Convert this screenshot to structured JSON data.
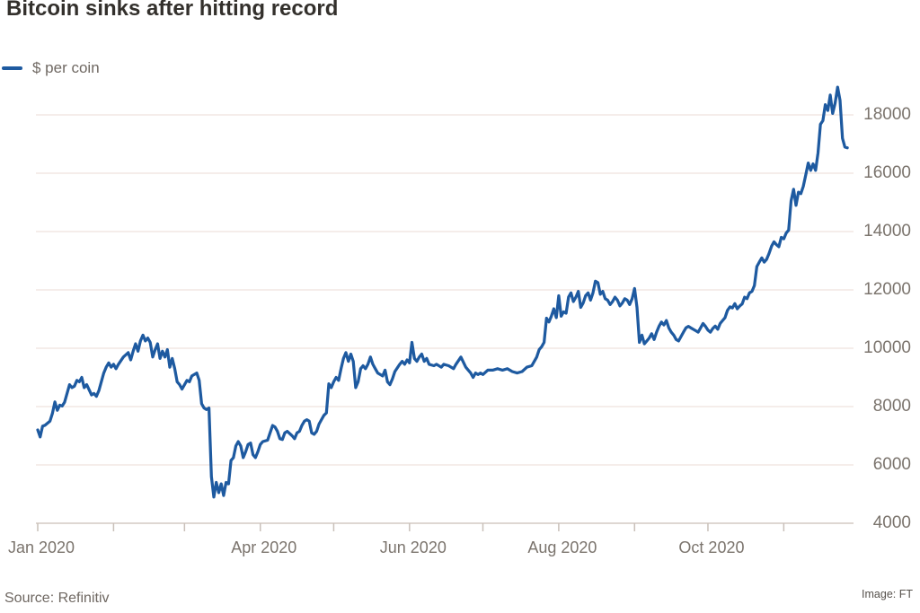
{
  "header": {
    "title": "Bitcoin sinks after hitting record"
  },
  "legend": {
    "label": "$ per coin",
    "line_color": "#1e5aa0"
  },
  "footer": {
    "source": "Source: Refinitiv",
    "credit": "Image: FT"
  },
  "colors": {
    "line": "#1e5aa0",
    "gridline": "#f2e7e3",
    "axis": "#d3cac4",
    "tick": "#c9c0b9",
    "axis_text": "#7b746d",
    "title_text": "#33302c"
  },
  "chart_data": {
    "type": "line",
    "title": "Bitcoin sinks after hitting record",
    "xlabel": "",
    "ylabel": "$ per coin",
    "ylim": [
      4000,
      19200
    ],
    "x_unit": "day of year 2020",
    "grid": "horizontal",
    "legend_position": "top-left",
    "y_ticks": [
      4000,
      6000,
      8000,
      10000,
      12000,
      14000,
      16000,
      18000
    ],
    "x_ticks": [
      {
        "day": 1,
        "label": "Jan 2020"
      },
      {
        "day": 32,
        "label": ""
      },
      {
        "day": 61,
        "label": ""
      },
      {
        "day": 92,
        "label": "Apr 2020"
      },
      {
        "day": 122,
        "label": ""
      },
      {
        "day": 153,
        "label": "Jun 2020"
      },
      {
        "day": 183,
        "label": ""
      },
      {
        "day": 214,
        "label": "Aug 2020"
      },
      {
        "day": 245,
        "label": ""
      },
      {
        "day": 275,
        "label": "Oct 2020"
      },
      {
        "day": 306,
        "label": ""
      }
    ],
    "series": [
      {
        "name": "$ per coin",
        "color": "#1e5aa0",
        "points": [
          [
            1,
            7200
          ],
          [
            2,
            6960
          ],
          [
            3,
            7330
          ],
          [
            4,
            7360
          ],
          [
            6,
            7500
          ],
          [
            7,
            7760
          ],
          [
            8,
            8160
          ],
          [
            9,
            7870
          ],
          [
            10,
            8050
          ],
          [
            11,
            8020
          ],
          [
            12,
            8150
          ],
          [
            14,
            8750
          ],
          [
            15,
            8650
          ],
          [
            16,
            8700
          ],
          [
            17,
            8900
          ],
          [
            18,
            8850
          ],
          [
            19,
            9000
          ],
          [
            20,
            8650
          ],
          [
            21,
            8750
          ],
          [
            23,
            8400
          ],
          [
            24,
            8450
          ],
          [
            25,
            8350
          ],
          [
            26,
            8550
          ],
          [
            28,
            9150
          ],
          [
            29,
            9350
          ],
          [
            30,
            9500
          ],
          [
            31,
            9350
          ],
          [
            32,
            9450
          ],
          [
            33,
            9300
          ],
          [
            34,
            9450
          ],
          [
            36,
            9700
          ],
          [
            38,
            9850
          ],
          [
            39,
            9600
          ],
          [
            40,
            9900
          ],
          [
            41,
            10150
          ],
          [
            42,
            9900
          ],
          [
            43,
            10250
          ],
          [
            44,
            10450
          ],
          [
            45,
            10250
          ],
          [
            46,
            10350
          ],
          [
            47,
            10200
          ],
          [
            48,
            9700
          ],
          [
            49,
            9950
          ],
          [
            50,
            10150
          ],
          [
            51,
            9650
          ],
          [
            52,
            9900
          ],
          [
            53,
            9700
          ],
          [
            54,
            9950
          ],
          [
            55,
            9350
          ],
          [
            56,
            9650
          ],
          [
            57,
            9300
          ],
          [
            58,
            8850
          ],
          [
            59,
            8750
          ],
          [
            60,
            8600
          ],
          [
            61,
            8750
          ],
          [
            62,
            8900
          ],
          [
            63,
            8850
          ],
          [
            64,
            9050
          ],
          [
            66,
            9150
          ],
          [
            67,
            8900
          ],
          [
            68,
            8100
          ],
          [
            69,
            7950
          ],
          [
            70,
            7900
          ],
          [
            71,
            7950
          ],
          [
            72,
            5600
          ],
          [
            73,
            4900
          ],
          [
            74,
            5400
          ],
          [
            75,
            5050
          ],
          [
            76,
            5350
          ],
          [
            77,
            4950
          ],
          [
            78,
            5400
          ],
          [
            79,
            5350
          ],
          [
            80,
            6150
          ],
          [
            81,
            6250
          ],
          [
            82,
            6650
          ],
          [
            83,
            6800
          ],
          [
            84,
            6650
          ],
          [
            85,
            6250
          ],
          [
            86,
            6450
          ],
          [
            87,
            6700
          ],
          [
            88,
            6750
          ],
          [
            89,
            6350
          ],
          [
            90,
            6250
          ],
          [
            91,
            6450
          ],
          [
            92,
            6700
          ],
          [
            93,
            6800
          ],
          [
            95,
            6850
          ],
          [
            96,
            7100
          ],
          [
            97,
            7350
          ],
          [
            98,
            7300
          ],
          [
            99,
            7150
          ],
          [
            100,
            6900
          ],
          [
            101,
            6870
          ],
          [
            102,
            7100
          ],
          [
            103,
            7150
          ],
          [
            105,
            7000
          ],
          [
            106,
            6900
          ],
          [
            107,
            7100
          ],
          [
            108,
            7150
          ],
          [
            109,
            7350
          ],
          [
            110,
            7500
          ],
          [
            111,
            7550
          ],
          [
            112,
            7500
          ],
          [
            113,
            7100
          ],
          [
            114,
            7050
          ],
          [
            115,
            7150
          ],
          [
            116,
            7400
          ],
          [
            117,
            7550
          ],
          [
            118,
            7700
          ],
          [
            119,
            7780
          ],
          [
            120,
            8780
          ],
          [
            121,
            8650
          ],
          [
            122,
            8850
          ],
          [
            123,
            9000
          ],
          [
            124,
            8900
          ],
          [
            125,
            9300
          ],
          [
            126,
            9650
          ],
          [
            127,
            9850
          ],
          [
            128,
            9550
          ],
          [
            129,
            9800
          ],
          [
            130,
            9550
          ],
          [
            131,
            8650
          ],
          [
            132,
            8850
          ],
          [
            133,
            9300
          ],
          [
            134,
            9400
          ],
          [
            135,
            9300
          ],
          [
            136,
            9450
          ],
          [
            137,
            9700
          ],
          [
            138,
            9450
          ],
          [
            139,
            9300
          ],
          [
            140,
            9150
          ],
          [
            142,
            9050
          ],
          [
            143,
            9250
          ],
          [
            144,
            8850
          ],
          [
            145,
            8750
          ],
          [
            146,
            8950
          ],
          [
            147,
            9200
          ],
          [
            149,
            9450
          ],
          [
            150,
            9550
          ],
          [
            151,
            9450
          ],
          [
            152,
            9600
          ],
          [
            153,
            9500
          ],
          [
            154,
            10200
          ],
          [
            155,
            9650
          ],
          [
            156,
            9550
          ],
          [
            157,
            9700
          ],
          [
            158,
            9800
          ],
          [
            159,
            9550
          ],
          [
            160,
            9650
          ],
          [
            161,
            9450
          ],
          [
            163,
            9400
          ],
          [
            164,
            9450
          ],
          [
            166,
            9350
          ],
          [
            167,
            9450
          ],
          [
            169,
            9400
          ],
          [
            171,
            9300
          ],
          [
            172,
            9450
          ],
          [
            174,
            9700
          ],
          [
            176,
            9350
          ],
          [
            177,
            9250
          ],
          [
            178,
            9150
          ],
          [
            179,
            9000
          ],
          [
            180,
            9150
          ],
          [
            181,
            9100
          ],
          [
            182,
            9150
          ],
          [
            183,
            9100
          ],
          [
            185,
            9250
          ],
          [
            187,
            9250
          ],
          [
            189,
            9300
          ],
          [
            191,
            9250
          ],
          [
            193,
            9300
          ],
          [
            195,
            9200
          ],
          [
            197,
            9150
          ],
          [
            199,
            9200
          ],
          [
            201,
            9350
          ],
          [
            203,
            9400
          ],
          [
            204,
            9550
          ],
          [
            205,
            9700
          ],
          [
            206,
            9950
          ],
          [
            207,
            10050
          ],
          [
            208,
            10200
          ],
          [
            209,
            11030
          ],
          [
            210,
            10900
          ],
          [
            211,
            11100
          ],
          [
            212,
            11350
          ],
          [
            213,
            11050
          ],
          [
            214,
            11800
          ],
          [
            215,
            11100
          ],
          [
            216,
            11250
          ],
          [
            217,
            11200
          ],
          [
            218,
            11750
          ],
          [
            219,
            11900
          ],
          [
            220,
            11600
          ],
          [
            221,
            11750
          ],
          [
            222,
            11950
          ],
          [
            223,
            11400
          ],
          [
            224,
            11550
          ],
          [
            225,
            11800
          ],
          [
            226,
            11900
          ],
          [
            227,
            11650
          ],
          [
            228,
            11900
          ],
          [
            229,
            12300
          ],
          [
            230,
            12250
          ],
          [
            231,
            11850
          ],
          [
            232,
            11950
          ],
          [
            233,
            11700
          ],
          [
            234,
            11650
          ],
          [
            235,
            11500
          ],
          [
            236,
            11600
          ],
          [
            237,
            11750
          ],
          [
            238,
            11650
          ],
          [
            239,
            11450
          ],
          [
            240,
            11550
          ],
          [
            241,
            11700
          ],
          [
            242,
            11650
          ],
          [
            243,
            11500
          ],
          [
            244,
            11700
          ],
          [
            245,
            12050
          ],
          [
            246,
            11400
          ],
          [
            247,
            10200
          ],
          [
            248,
            10450
          ],
          [
            249,
            10150
          ],
          [
            250,
            10250
          ],
          [
            251,
            10350
          ],
          [
            252,
            10500
          ],
          [
            253,
            10300
          ],
          [
            254,
            10550
          ],
          [
            255,
            10750
          ],
          [
            256,
            10900
          ],
          [
            257,
            10800
          ],
          [
            258,
            10950
          ],
          [
            259,
            10700
          ],
          [
            260,
            10550
          ],
          [
            261,
            10450
          ],
          [
            262,
            10300
          ],
          [
            263,
            10250
          ],
          [
            264,
            10400
          ],
          [
            265,
            10550
          ],
          [
            266,
            10700
          ],
          [
            267,
            10750
          ],
          [
            268,
            10700
          ],
          [
            269,
            10650
          ],
          [
            270,
            10600
          ],
          [
            271,
            10550
          ],
          [
            272,
            10700
          ],
          [
            273,
            10850
          ],
          [
            274,
            10750
          ],
          [
            275,
            10620
          ],
          [
            276,
            10550
          ],
          [
            277,
            10680
          ],
          [
            278,
            10760
          ],
          [
            279,
            10650
          ],
          [
            280,
            10850
          ],
          [
            281,
            10950
          ],
          [
            282,
            11050
          ],
          [
            283,
            11300
          ],
          [
            284,
            11420
          ],
          [
            285,
            11380
          ],
          [
            286,
            11530
          ],
          [
            287,
            11350
          ],
          [
            288,
            11450
          ],
          [
            289,
            11520
          ],
          [
            290,
            11750
          ],
          [
            291,
            11700
          ],
          [
            292,
            11900
          ],
          [
            293,
            11950
          ],
          [
            294,
            12150
          ],
          [
            295,
            12800
          ],
          [
            296,
            12950
          ],
          [
            297,
            13100
          ],
          [
            298,
            12950
          ],
          [
            299,
            13050
          ],
          [
            300,
            13250
          ],
          [
            301,
            13500
          ],
          [
            302,
            13650
          ],
          [
            303,
            13550
          ],
          [
            304,
            13480
          ],
          [
            305,
            13800
          ],
          [
            306,
            13750
          ],
          [
            307,
            13950
          ],
          [
            308,
            14050
          ],
          [
            309,
            15050
          ],
          [
            310,
            15450
          ],
          [
            311,
            14900
          ],
          [
            312,
            15350
          ],
          [
            313,
            15300
          ],
          [
            314,
            15550
          ],
          [
            315,
            15950
          ],
          [
            316,
            16350
          ],
          [
            317,
            16100
          ],
          [
            318,
            16320
          ],
          [
            319,
            16100
          ],
          [
            320,
            16700
          ],
          [
            321,
            17680
          ],
          [
            322,
            17800
          ],
          [
            323,
            18350
          ],
          [
            324,
            18150
          ],
          [
            325,
            18680
          ],
          [
            326,
            18050
          ],
          [
            327,
            18400
          ],
          [
            328,
            18950
          ],
          [
            329,
            18500
          ],
          [
            330,
            17200
          ],
          [
            331,
            16900
          ],
          [
            332,
            16870
          ]
        ]
      }
    ]
  }
}
